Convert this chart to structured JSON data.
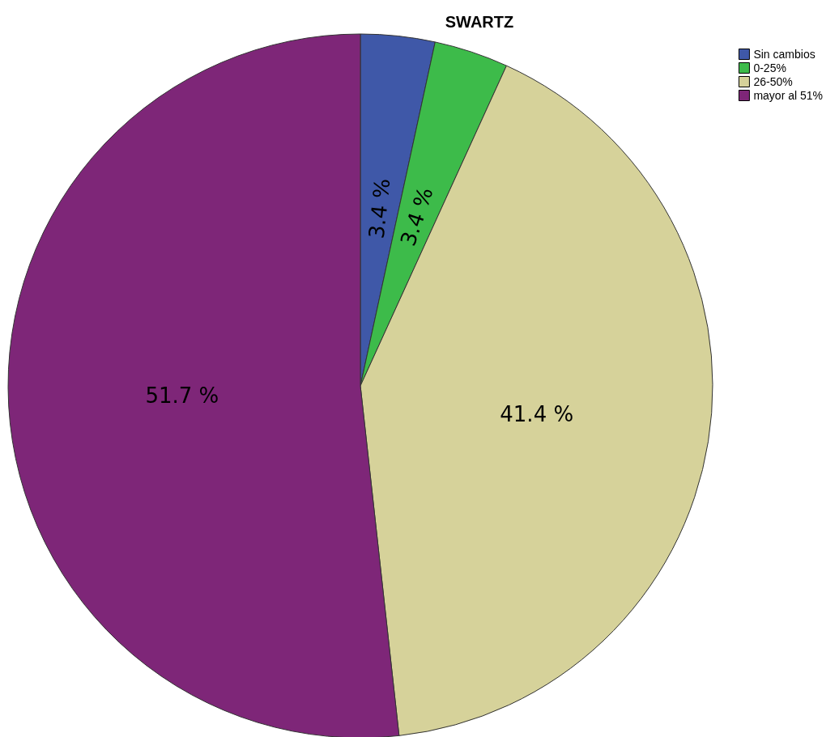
{
  "chart_data": {
    "type": "pie",
    "title": "SWARTZ",
    "categories": [
      "Sin cambios",
      "0-25%",
      "26-50%",
      "mayor al 51%"
    ],
    "values": [
      3.4,
      3.4,
      41.4,
      51.7
    ],
    "colors": [
      "#3f58a8",
      "#3dbb4a",
      "#d6d29a",
      "#7e2678"
    ],
    "value_labels": [
      "3.4 %",
      "3.4 %",
      "41.4 %",
      "51.7 %"
    ],
    "legend": "top right"
  }
}
